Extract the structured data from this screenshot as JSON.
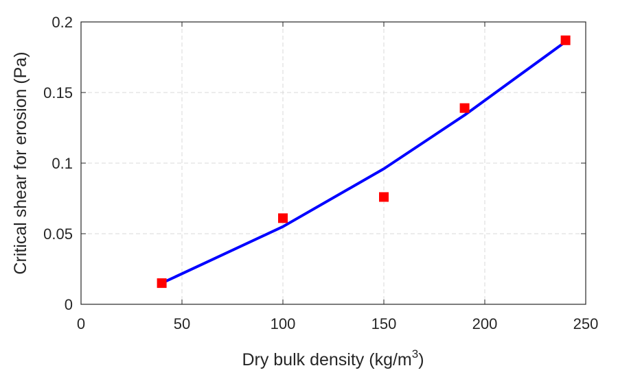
{
  "chart_data": {
    "type": "scatter",
    "xlabel": "Dry bulk density (kg/m",
    "xlabel_sup": "3",
    "xlabel_end": ")",
    "ylabel": "Critical shear for erosion (Pa)",
    "xlim": [
      0,
      250
    ],
    "ylim": [
      0,
      0.2
    ],
    "xticks": [
      0,
      50,
      100,
      150,
      200,
      250
    ],
    "yticks": [
      0,
      0.05,
      0.1,
      0.15,
      0.2
    ],
    "xtick_labels": [
      "0",
      "50",
      "100",
      "150",
      "200",
      "250"
    ],
    "ytick_labels": [
      "0",
      "0.05",
      "0.1",
      "0.15",
      "0.2"
    ],
    "grid": true,
    "series": [
      {
        "kind": "scatter",
        "marker": "square",
        "color": "#ff0000",
        "x": [
          40,
          100,
          150,
          190,
          240
        ],
        "y": [
          0.015,
          0.061,
          0.076,
          0.139,
          0.187
        ]
      },
      {
        "kind": "line",
        "color": "#0000ff",
        "x": [
          40,
          100,
          150,
          190,
          240
        ],
        "y": [
          0.015,
          0.055,
          0.096,
          0.134,
          0.186
        ]
      }
    ]
  }
}
